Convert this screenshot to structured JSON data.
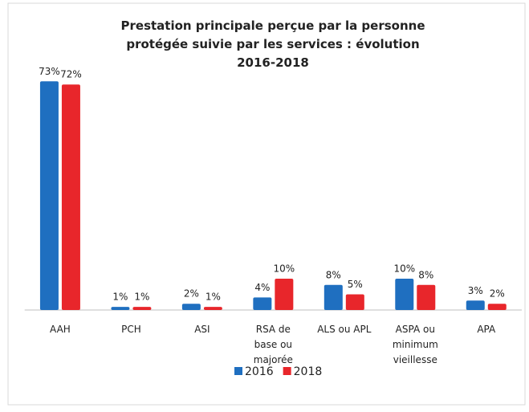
{
  "chart_data": {
    "type": "bar",
    "title": "Prestation principale perçue par la personne protégée suivie par les services : évolution 2016-2018",
    "categories": [
      "AAH",
      "PCH",
      "ASI",
      "RSA de base ou majorée",
      "ALS ou APL",
      "ASPA ou minimum vieillesse",
      "APA"
    ],
    "series": [
      {
        "name": "2016",
        "color": "#1f6fc0",
        "values": [
          73,
          1,
          2,
          4,
          8,
          10,
          3
        ],
        "value_labels": [
          "73%",
          "1%",
          "2%",
          "4%",
          "8%",
          "10%",
          "3%"
        ]
      },
      {
        "name": "2018",
        "color": "#e8262b",
        "values": [
          72,
          1,
          1,
          10,
          5,
          8,
          2
        ],
        "value_labels": [
          "72%",
          "1%",
          "1%",
          "10%",
          "5%",
          "8%",
          "2%"
        ]
      }
    ],
    "ylim": [
      0,
      80
    ],
    "grid": false,
    "legend": "bottom"
  }
}
